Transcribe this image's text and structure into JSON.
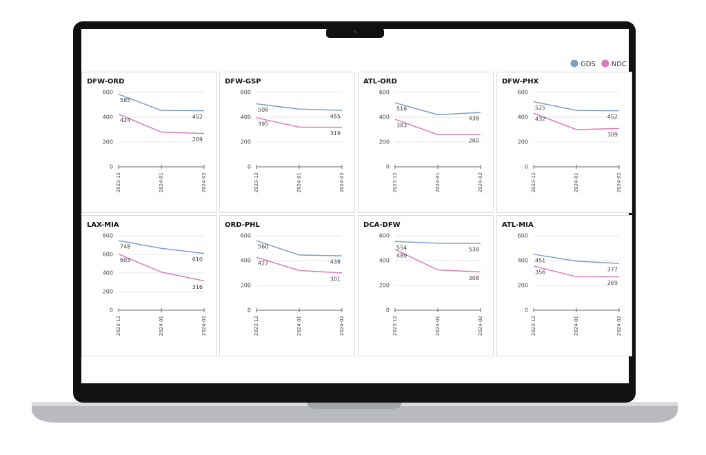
{
  "legend": [
    {
      "name": "GDS",
      "color": "#7ba0c6"
    },
    {
      "name": "NDC",
      "color": "#d97cbd"
    }
  ],
  "chart_data": [
    {
      "type": "line",
      "title": "DFW-ORD",
      "x": [
        "2023-12",
        "2024-01",
        "2024-02"
      ],
      "ylim": [
        0,
        600
      ],
      "yticks": [
        0,
        200,
        400,
        600
      ],
      "grid": true,
      "series": [
        {
          "values": [
            585,
            455,
            452
          ]
        },
        {
          "values": [
            424,
            280,
            269
          ]
        }
      ]
    },
    {
      "type": "line",
      "title": "DFW-GSP",
      "x": [
        "2023-12",
        "2024-01",
        "2024-02"
      ],
      "ylim": [
        0,
        600
      ],
      "yticks": [
        0,
        200,
        400,
        600
      ],
      "grid": true,
      "series": [
        {
          "values": [
            508,
            465,
            455
          ]
        },
        {
          "values": [
            395,
            320,
            319
          ]
        }
      ]
    },
    {
      "type": "line",
      "title": "ATL-ORD",
      "x": [
        "2023-12",
        "2024-01",
        "2024-02"
      ],
      "ylim": [
        0,
        600
      ],
      "yticks": [
        0,
        200,
        400,
        600
      ],
      "grid": true,
      "series": [
        {
          "values": [
            516,
            420,
            438
          ]
        },
        {
          "values": [
            383,
            260,
            260
          ]
        }
      ]
    },
    {
      "type": "line",
      "title": "DFW-PHX",
      "x": [
        "2023-12",
        "2024-01",
        "2024-02"
      ],
      "ylim": [
        0,
        600
      ],
      "yticks": [
        0,
        200,
        400,
        600
      ],
      "grid": true,
      "series": [
        {
          "values": [
            525,
            455,
            452
          ]
        },
        {
          "values": [
            432,
            300,
            309
          ]
        }
      ]
    },
    {
      "type": "line",
      "title": "LAX-MIA",
      "x": [
        "2023-12",
        "2024-01",
        "2024-02"
      ],
      "ylim": [
        0,
        800
      ],
      "yticks": [
        0,
        200,
        400,
        600,
        800
      ],
      "grid": true,
      "series": [
        {
          "values": [
            748,
            665,
            610
          ]
        },
        {
          "values": [
            603,
            410,
            316
          ]
        }
      ]
    },
    {
      "type": "line",
      "title": "ORD-PHL",
      "x": [
        "2023-12",
        "2024-01",
        "2024-02"
      ],
      "ylim": [
        0,
        600
      ],
      "yticks": [
        0,
        200,
        400,
        600
      ],
      "grid": true,
      "series": [
        {
          "values": [
            560,
            445,
            438
          ]
        },
        {
          "values": [
            427,
            320,
            301
          ]
        }
      ]
    },
    {
      "type": "line",
      "title": "DCA-DFW",
      "x": [
        "2023-12",
        "2024-01",
        "2024-02"
      ],
      "ylim": [
        0,
        600
      ],
      "yticks": [
        0,
        200,
        400,
        600
      ],
      "grid": true,
      "series": [
        {
          "values": [
            554,
            540,
            538
          ]
        },
        {
          "values": [
            489,
            325,
            308
          ]
        }
      ]
    },
    {
      "type": "line",
      "title": "ATL-MIA",
      "x": [
        "2023-12",
        "2024-01",
        "2024-02"
      ],
      "ylim": [
        0,
        600
      ],
      "yticks": [
        0,
        200,
        400,
        600
      ],
      "grid": true,
      "series": [
        {
          "values": [
            451,
            395,
            377
          ]
        },
        {
          "values": [
            356,
            270,
            269
          ]
        }
      ]
    }
  ]
}
